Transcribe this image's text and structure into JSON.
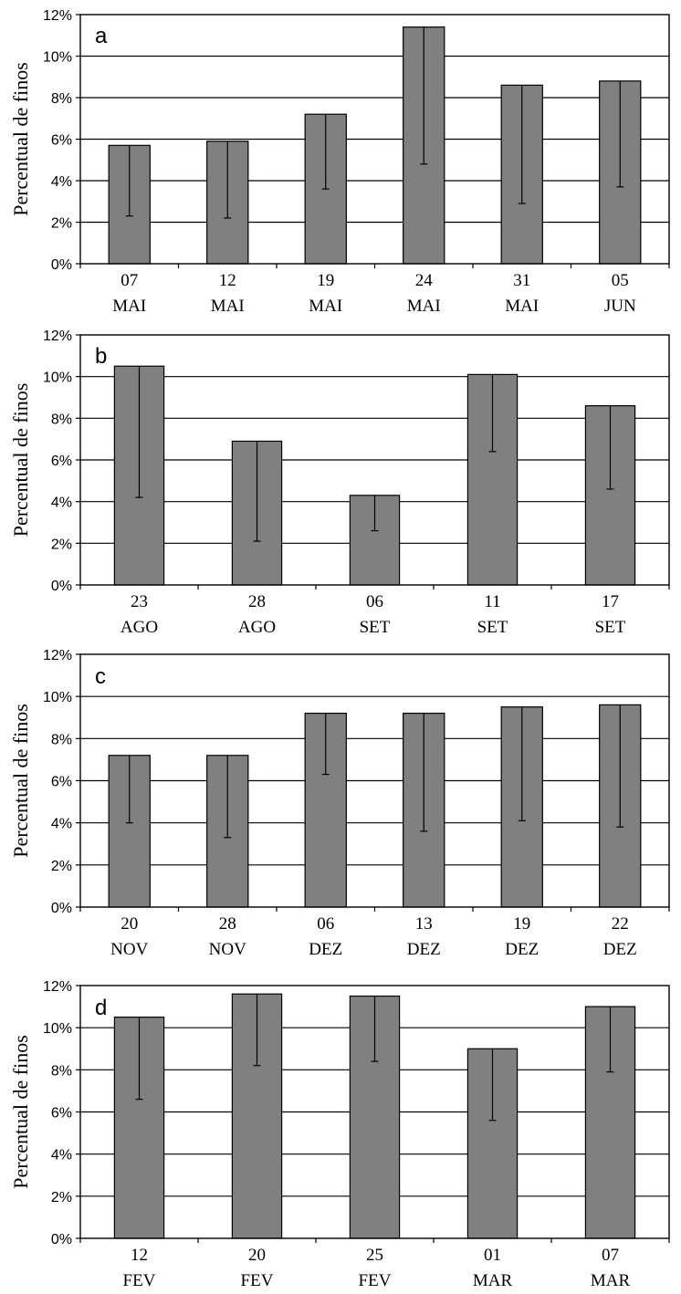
{
  "chart_data": [
    {
      "panel": "a",
      "type": "bar",
      "ylabel": "Percentual de finos",
      "ylim": [
        0,
        12
      ],
      "yticks": [
        "0%",
        "2%",
        "4%",
        "6%",
        "8%",
        "10%",
        "12%"
      ],
      "grid": true,
      "categories": [
        [
          "07",
          "MAI"
        ],
        [
          "12",
          "MAI"
        ],
        [
          "19",
          "MAI"
        ],
        [
          "24",
          "MAI"
        ],
        [
          "31",
          "MAI"
        ],
        [
          "05",
          "JUN"
        ]
      ],
      "values": [
        5.7,
        5.9,
        7.2,
        11.4,
        8.6,
        8.8
      ],
      "error_low": [
        2.3,
        2.2,
        3.6,
        4.8,
        2.9,
        3.7
      ],
      "colors": {
        "bar": "#808080",
        "edge": "#000000"
      }
    },
    {
      "panel": "b",
      "type": "bar",
      "ylabel": "Percentual de finos",
      "ylim": [
        0,
        12
      ],
      "yticks": [
        "0%",
        "2%",
        "4%",
        "6%",
        "8%",
        "10%",
        "12%"
      ],
      "grid": true,
      "categories": [
        [
          "23",
          "AGO"
        ],
        [
          "28",
          "AGO"
        ],
        [
          "06",
          "SET"
        ],
        [
          "11",
          "SET"
        ],
        [
          "17",
          "SET"
        ]
      ],
      "values": [
        10.5,
        6.9,
        4.3,
        10.1,
        8.6
      ],
      "error_low": [
        4.2,
        2.1,
        2.6,
        6.4,
        4.6
      ],
      "colors": {
        "bar": "#808080",
        "edge": "#000000"
      }
    },
    {
      "panel": "c",
      "type": "bar",
      "ylabel": "Percentual de finos",
      "ylim": [
        0,
        12
      ],
      "yticks": [
        "0%",
        "2%",
        "4%",
        "6%",
        "8%",
        "10%",
        "12%"
      ],
      "grid": true,
      "categories": [
        [
          "20",
          "NOV"
        ],
        [
          "28",
          "NOV"
        ],
        [
          "06",
          "DEZ"
        ],
        [
          "13",
          "DEZ"
        ],
        [
          "19",
          "DEZ"
        ],
        [
          "22",
          "DEZ"
        ]
      ],
      "values": [
        7.2,
        7.2,
        9.2,
        9.2,
        9.5,
        9.6
      ],
      "error_low": [
        4.0,
        3.3,
        6.3,
        3.6,
        4.1,
        3.8
      ],
      "colors": {
        "bar": "#808080",
        "edge": "#000000"
      }
    },
    {
      "panel": "d",
      "type": "bar",
      "ylabel": "Percentual de finos",
      "ylim": [
        0,
        12
      ],
      "yticks": [
        "0%",
        "2%",
        "4%",
        "6%",
        "8%",
        "10%",
        "12%"
      ],
      "grid": true,
      "categories": [
        [
          "12",
          "FEV"
        ],
        [
          "20",
          "FEV"
        ],
        [
          "25",
          "FEV"
        ],
        [
          "01",
          "MAR"
        ],
        [
          "07",
          "MAR"
        ]
      ],
      "values": [
        10.5,
        11.6,
        11.5,
        9.0,
        11.0
      ],
      "error_low": [
        6.6,
        8.2,
        8.4,
        5.6,
        7.9
      ],
      "colors": {
        "bar": "#808080",
        "edge": "#000000"
      }
    }
  ]
}
